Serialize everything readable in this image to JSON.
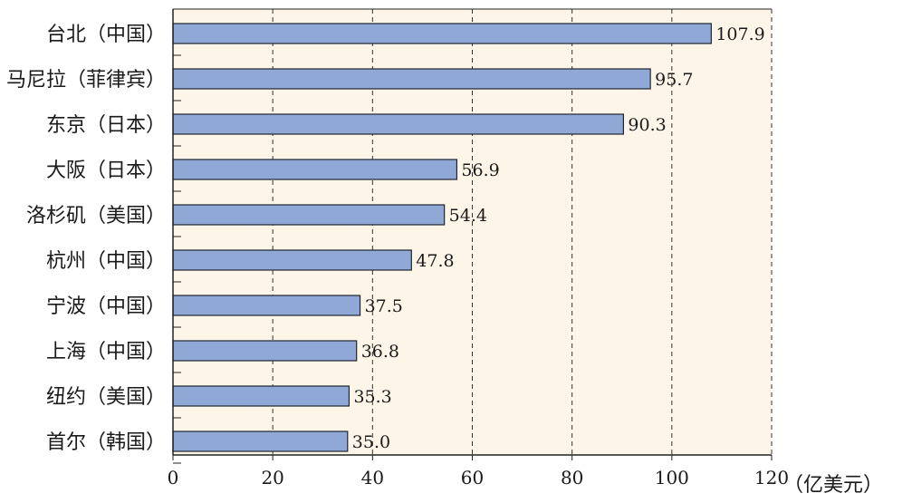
{
  "chart_data": {
    "type": "bar",
    "orientation": "horizontal",
    "categories": [
      "台北（中国）",
      "马尼拉（菲律宾）",
      "东京（日本）",
      "大阪（日本）",
      "洛杉矶（美国）",
      "杭州（中国）",
      "宁波（中国）",
      "上海（中国）",
      "纽约（美国）",
      "首尔（韩国）"
    ],
    "values": [
      107.9,
      95.7,
      90.3,
      56.9,
      54.4,
      47.8,
      37.5,
      36.8,
      35.3,
      35.0
    ],
    "value_labels": [
      "107.9",
      "95.7",
      "90.3",
      "56.9",
      "54.4",
      "47.8",
      "37.5",
      "36.8",
      "35.3",
      "35.0"
    ],
    "xlim": [
      0,
      120
    ],
    "xticks": [
      0,
      20,
      40,
      60,
      80,
      100,
      120
    ],
    "xtick_labels": [
      "0",
      "20",
      "40",
      "60",
      "80",
      "100",
      "120"
    ],
    "xlabel": "（亿美元）",
    "title": "",
    "grid": "vertical-dashed",
    "colors": {
      "bar_fill": "#8fa8d6",
      "bar_stroke": "#1f2533",
      "plot_background": "#fdf6e8",
      "grid": "#333333",
      "axis": "#222222"
    }
  }
}
